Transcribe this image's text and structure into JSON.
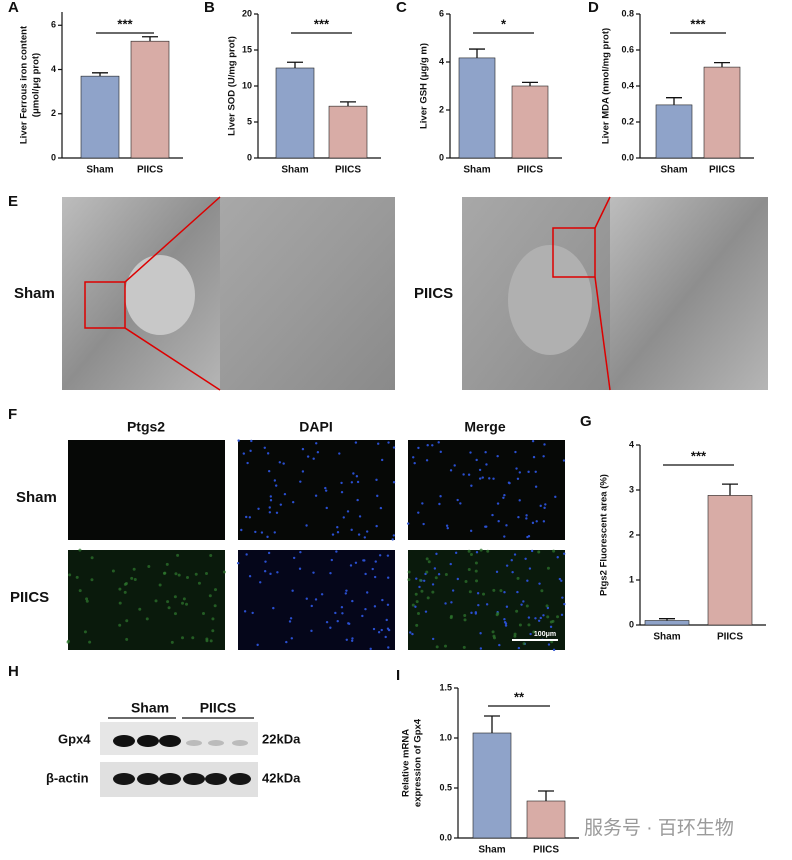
{
  "chart_data": [
    {
      "type": "bar",
      "panel": "A",
      "ylabel": [
        "Liver Ferrous iron content",
        "(μmol/μg prot)"
      ],
      "categories": [
        "Sham",
        "PIICS"
      ],
      "values": [
        3.7,
        5.28
      ],
      "errors": [
        0.15,
        0.2
      ],
      "colors": [
        "#8fa3c9",
        "#d8aca6"
      ],
      "ylim": [
        0,
        6.6
      ],
      "yticks": [
        0,
        2,
        4,
        6
      ],
      "significance": "***"
    },
    {
      "type": "bar",
      "panel": "B",
      "ylabel": [
        "Liver SOD (U/mg prot)"
      ],
      "categories": [
        "Sham",
        "PIICS"
      ],
      "values": [
        12.5,
        7.2
      ],
      "errors": [
        0.8,
        0.6
      ],
      "colors": [
        "#8fa3c9",
        "#d8aca6"
      ],
      "ylim": [
        0,
        20
      ],
      "yticks": [
        0,
        5,
        10,
        15,
        20
      ],
      "significance": "***"
    },
    {
      "type": "bar",
      "panel": "C",
      "ylabel": [
        "Liver GSH (μg/g m)"
      ],
      "categories": [
        "Sham",
        "PIICS"
      ],
      "values": [
        4.17,
        3.0
      ],
      "errors": [
        0.37,
        0.15
      ],
      "colors": [
        "#8fa3c9",
        "#d8aca6"
      ],
      "ylim": [
        0,
        6
      ],
      "yticks": [
        0,
        2,
        4,
        6
      ],
      "significance": "*"
    },
    {
      "type": "bar",
      "panel": "D",
      "ylabel": [
        "Liver MDA (nmol/mg prot)"
      ],
      "categories": [
        "Sham",
        "PIICS"
      ],
      "values": [
        0.295,
        0.505
      ],
      "errors": [
        0.04,
        0.025
      ],
      "colors": [
        "#8fa3c9",
        "#d8aca6"
      ],
      "ylim": [
        0,
        0.8
      ],
      "yticks": [
        {
          "value": 0,
          "label": "0.0"
        },
        {
          "value": 0.2,
          "label": "0.2"
        },
        {
          "value": 0.4,
          "label": "0.4"
        },
        {
          "value": 0.6,
          "label": "0.6"
        },
        {
          "value": 0.8,
          "label": "0.8"
        }
      ],
      "significance": "***"
    },
    {
      "type": "bar",
      "panel": "G",
      "ylabel": [
        "Ptgs2 Fluorescent area (%)"
      ],
      "categories": [
        "Sham",
        "PIICS"
      ],
      "values": [
        0.1,
        2.88
      ],
      "errors": [
        0.04,
        0.25
      ],
      "colors": [
        "#8fa3c9",
        "#d8aca6"
      ],
      "ylim": [
        0,
        4
      ],
      "yticks": [
        0,
        1,
        2,
        3,
        4
      ],
      "significance": "***"
    },
    {
      "type": "bar",
      "panel": "I",
      "ylabel": [
        "Relative mRNA",
        "expression of Gpx4"
      ],
      "categories": [
        "Sham",
        "PIICS"
      ],
      "values": [
        1.05,
        0.37
      ],
      "errors": [
        0.17,
        0.1
      ],
      "colors": [
        "#8fa3c9",
        "#d8aca6"
      ],
      "ylim": [
        0,
        1.5
      ],
      "yticks": [
        {
          "value": 0,
          "label": "0.0"
        },
        {
          "value": 0.5,
          "label": "0.5"
        },
        {
          "value": 1,
          "label": "1.0"
        },
        {
          "value": 1.5,
          "label": "1.5"
        }
      ],
      "significance": "**"
    }
  ],
  "figure": {
    "E": {
      "label": "E",
      "groups": [
        "Sham",
        "PIICS"
      ]
    },
    "F": {
      "label": "F",
      "columns": [
        "Ptgs2",
        "DAPI",
        "Merge"
      ],
      "rows": [
        "Sham",
        "PIICS"
      ],
      "scale_bar": "100μm"
    },
    "H": {
      "label": "H",
      "groups": [
        "Sham",
        "PIICS"
      ],
      "rows": [
        "Gpx4",
        "β-actin"
      ],
      "sizes": [
        "22kDa",
        "42kDa"
      ]
    },
    "watermark": "服务号 · 百环生物"
  }
}
